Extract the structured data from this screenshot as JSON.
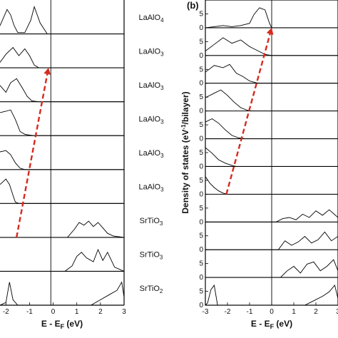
{
  "chart_data": [
    {
      "type": "line",
      "panel_label": "",
      "xlabel": "E - E",
      "xlabel_sub": "F",
      "xlabel_unit": " (eV)",
      "ylabel": "",
      "xlim": [
        -2.25,
        3
      ],
      "x_ticks": [
        "-2",
        "-1",
        "0",
        "1",
        "2",
        "3"
      ],
      "x_tick_values": [
        -2,
        -1,
        0,
        1,
        2,
        3
      ],
      "fermi_line_x": -0.1,
      "layer_labels": [
        {
          "base": "LaAlO",
          "sub": "4"
        },
        {
          "base": "LaAlO",
          "sub": "3"
        },
        {
          "base": "LaAlO",
          "sub": "3"
        },
        {
          "base": "LaAlO",
          "sub": "3"
        },
        {
          "base": "LaAlO",
          "sub": "3"
        },
        {
          "base": "LaAlO",
          "sub": "3"
        },
        {
          "base": "SrTiO",
          "sub": "3"
        },
        {
          "base": "SrTiO",
          "sub": "3"
        },
        {
          "base": "SrTiO",
          "sub": "2"
        }
      ],
      "series": [
        {
          "x": [
            -2.25,
            -1.95,
            -1.8,
            -1.65,
            -1.5,
            -1.2,
            -0.95,
            -0.8,
            -0.55,
            -0.25
          ],
          "y": [
            0.3,
            0.9,
            0.7,
            0.3,
            0.05,
            0.05,
            0.5,
            1.0,
            0.4,
            0.0
          ]
        },
        {
          "x": [
            -2.25,
            -2.0,
            -1.7,
            -1.45,
            -1.2,
            -1.0,
            -0.8,
            -0.6,
            0.0,
            3.0
          ],
          "y": [
            0.2,
            0.5,
            0.75,
            0.45,
            0.7,
            0.45,
            0.1,
            0.0,
            0.0,
            0.0
          ]
        },
        {
          "x": [
            -2.25,
            -2.0,
            -1.8,
            -1.55,
            -1.3,
            -1.1,
            -0.9,
            -0.6,
            3.0
          ],
          "y": [
            0.6,
            0.35,
            0.7,
            0.85,
            0.5,
            0.2,
            0.03,
            0.0,
            0.0
          ]
        },
        {
          "x": [
            -2.25,
            -2.0,
            -1.8,
            -1.6,
            -1.4,
            -1.2,
            -1.0,
            -0.8,
            3.0
          ],
          "y": [
            0.85,
            0.9,
            0.95,
            0.6,
            0.15,
            0.05,
            0.02,
            0.0,
            0.0
          ]
        },
        {
          "x": [
            -2.25,
            -2.0,
            -1.8,
            -1.6,
            -1.4,
            -1.2,
            -1.0,
            3.0
          ],
          "y": [
            0.65,
            0.7,
            0.55,
            0.25,
            0.05,
            0.0,
            0.0,
            0.0
          ]
        },
        {
          "x": [
            -2.25,
            -2.0,
            -1.85,
            -1.7,
            -1.6,
            -1.45,
            3.0
          ],
          "y": [
            0.7,
            0.9,
            0.7,
            0.3,
            0.05,
            0.0,
            0.0
          ]
        },
        {
          "x": [
            -2.25,
            0.6,
            0.9,
            1.1,
            1.3,
            1.5,
            1.7,
            1.9,
            2.1,
            2.3,
            2.55,
            3.0
          ],
          "y": [
            0.0,
            0.0,
            0.3,
            0.55,
            0.45,
            0.6,
            0.4,
            0.55,
            0.35,
            0.15,
            0.05,
            0.0
          ]
        },
        {
          "x": [
            -2.25,
            0.5,
            0.8,
            1.0,
            1.2,
            1.4,
            1.7,
            1.9,
            2.1,
            2.3,
            2.6,
            3.0
          ],
          "y": [
            0.0,
            0.0,
            0.2,
            0.55,
            0.7,
            0.5,
            0.35,
            0.8,
            0.4,
            0.7,
            0.15,
            0.0
          ]
        },
        {
          "x": [
            -2.25,
            -2.0,
            -1.85,
            -1.7,
            -1.5,
            1.6,
            2.0,
            2.4,
            2.7,
            2.9,
            3.0
          ],
          "y": [
            0.0,
            0.1,
            0.85,
            0.2,
            0.0,
            0.0,
            0.2,
            0.4,
            0.55,
            0.85,
            0.3
          ]
        }
      ],
      "arrow": {
        "from": {
          "x": -1.55,
          "panel": 6
        },
        "to": {
          "x": -0.2,
          "panel": 1
        }
      }
    },
    {
      "type": "line",
      "panel_label": "(b)",
      "xlabel": "E - E",
      "xlabel_sub": "F",
      "xlabel_unit": " (eV)",
      "ylabel": "Density of states  (eV",
      "ylabel_sup": "-1",
      "ylabel_tail": "/bilayer)",
      "xlim": [
        -3,
        3
      ],
      "x_ticks": [
        "-3",
        "-2",
        "-1",
        "0",
        "1",
        "2",
        "3"
      ],
      "x_tick_values": [
        -3,
        -2,
        -1,
        0,
        1,
        2,
        3
      ],
      "y_ticks": [
        "5",
        "0"
      ],
      "fermi_line_x": 0,
      "series": [
        {
          "x": [
            -3,
            -2.6,
            -2.2,
            -1.8,
            -1.4,
            -1.0,
            -0.8,
            -0.55,
            -0.3,
            -0.1,
            0.0,
            3.0
          ],
          "y": [
            0.0,
            0.05,
            0.1,
            0.05,
            0.1,
            0.2,
            0.6,
            0.9,
            0.8,
            0.2,
            0.0,
            0.0
          ]
        },
        {
          "x": [
            -3,
            -2.6,
            -2.2,
            -1.8,
            -1.4,
            -1.0,
            -0.6,
            -0.3,
            0.0,
            3.0
          ],
          "y": [
            0.2,
            0.5,
            0.8,
            0.55,
            0.7,
            0.4,
            0.2,
            0.05,
            0.0,
            0.0
          ]
        },
        {
          "x": [
            -3,
            -2.6,
            -2.2,
            -1.9,
            -1.6,
            -1.3,
            -1.0,
            -0.7,
            -0.5,
            3.0
          ],
          "y": [
            0.5,
            0.8,
            0.7,
            0.85,
            0.45,
            0.3,
            0.1,
            0.02,
            0.0,
            0.0
          ]
        },
        {
          "x": [
            -3,
            -2.6,
            -2.3,
            -2.0,
            -1.7,
            -1.4,
            -1.1,
            -0.9,
            3.0
          ],
          "y": [
            0.6,
            0.8,
            0.95,
            0.7,
            0.4,
            0.15,
            0.03,
            0.0,
            0.0
          ]
        },
        {
          "x": [
            -3,
            -2.7,
            -2.4,
            -2.1,
            -1.8,
            -1.5,
            -1.2,
            3.0
          ],
          "y": [
            0.75,
            0.9,
            0.7,
            0.4,
            0.15,
            0.04,
            0.0,
            0.0
          ]
        },
        {
          "x": [
            -3,
            -2.7,
            -2.4,
            -2.1,
            -1.8,
            -1.6,
            3.0
          ],
          "y": [
            0.85,
            0.6,
            0.3,
            0.15,
            0.05,
            0.0,
            0.0
          ]
        },
        {
          "x": [
            -3,
            -2.8,
            -2.6,
            -2.4,
            -2.2,
            -2.0,
            3.0
          ],
          "y": [
            0.8,
            0.5,
            0.3,
            0.15,
            0.05,
            0.0,
            0.0
          ]
        },
        {
          "x": [
            -3,
            0.2,
            0.5,
            0.8,
            1.1,
            1.4,
            1.7,
            2.0,
            2.3,
            2.6,
            3.0
          ],
          "y": [
            0.0,
            0.0,
            0.15,
            0.2,
            0.1,
            0.35,
            0.2,
            0.5,
            0.3,
            0.55,
            0.2
          ]
        },
        {
          "x": [
            -3,
            0.3,
            0.6,
            0.9,
            1.2,
            1.5,
            1.8,
            2.1,
            2.4,
            2.7,
            3.0
          ],
          "y": [
            0.0,
            0.0,
            0.4,
            0.2,
            0.35,
            0.6,
            0.3,
            0.45,
            0.8,
            0.4,
            0.6
          ]
        },
        {
          "x": [
            -3,
            0.4,
            0.7,
            1.0,
            1.3,
            1.6,
            1.9,
            2.2,
            2.5,
            2.8,
            3.0
          ],
          "y": [
            0.0,
            0.0,
            0.3,
            0.5,
            0.2,
            0.6,
            0.7,
            0.3,
            0.5,
            0.8,
            0.3
          ]
        },
        {
          "x": [
            -3,
            -2.9,
            -2.75,
            -2.6,
            -2.45,
            1.5,
            1.9,
            2.3,
            2.6,
            2.85,
            3.0
          ],
          "y": [
            0.0,
            0.1,
            0.7,
            0.9,
            0.0,
            0.0,
            0.2,
            0.4,
            0.6,
            0.9,
            0.3
          ]
        }
      ],
      "arrow": {
        "from": {
          "x": -2.05,
          "panel": 6
        },
        "to": {
          "x": 0.0,
          "panel": 0
        }
      }
    }
  ]
}
